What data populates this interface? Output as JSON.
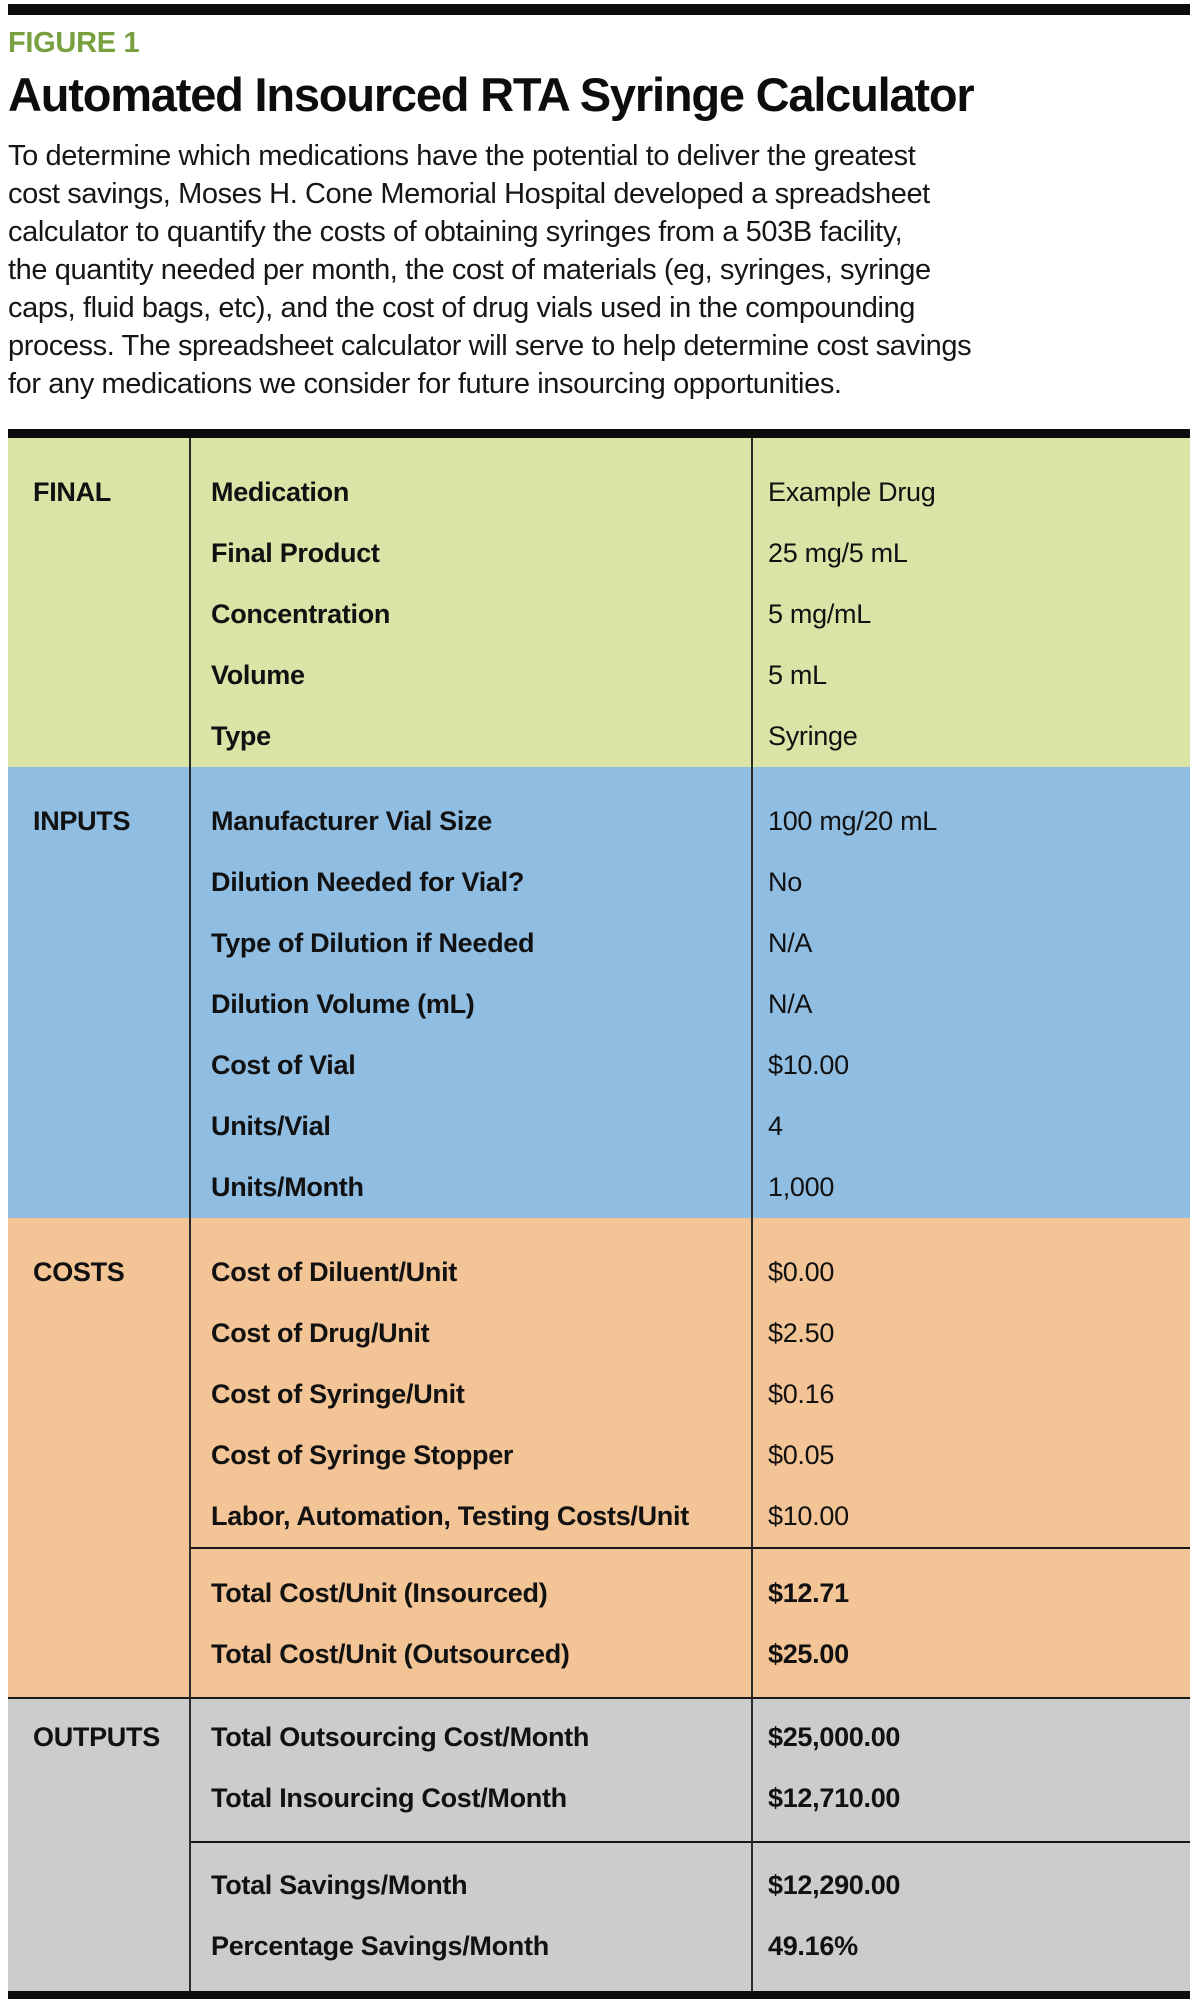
{
  "figure": {
    "kicker": "FIGURE 1",
    "title": "Automated Insourced RTA Syringe Calculator",
    "description": "To determine which medications have the potential to deliver the greatest\ncost savings, Moses H. Cone Memorial Hospital developed a spreadsheet\ncalculator to quantify the costs of obtaining syringes from a 503B facility,\nthe quantity needed per month, the cost of materials (eg, syringes, syringe\ncaps, fluid bags, etc), and the cost of drug vials used in the compounding\nprocess. The spreadsheet calculator will serve to help determine cost savings\nfor any medications we consider for future insourcing opportunities."
  },
  "colors": {
    "kicker_green": "#79a03f",
    "rule_black": "#0d0d0d",
    "final_bg": "#dbe3a7",
    "inputs_bg": "#90bde2",
    "costs_bg": "#f3c496",
    "outputs_bg": "#cccccd"
  },
  "table": {
    "sections": [
      {
        "id": "final",
        "label": "FINAL",
        "bg": "#dbe3a7",
        "top_line": false,
        "groups": [
          {
            "values_bold": false,
            "rows": [
              {
                "label": "Medication",
                "value": "Example Drug"
              },
              {
                "label": "Final Product",
                "value": "25 mg/5 mL"
              },
              {
                "label": "Concentration",
                "value": "5 mg/mL"
              },
              {
                "label": "Volume",
                "value": "5 mL"
              },
              {
                "label": "Type",
                "value": "Syringe"
              }
            ]
          }
        ]
      },
      {
        "id": "inputs",
        "label": "INPUTS",
        "bg": "#90bde2",
        "top_line": false,
        "groups": [
          {
            "values_bold": false,
            "rows": [
              {
                "label": "Manufacturer Vial Size",
                "value": "100 mg/20 mL"
              },
              {
                "label": "Dilution Needed for Vial?",
                "value": "No"
              },
              {
                "label": "Type of Dilution if Needed",
                "value": "N/A"
              },
              {
                "label": "Dilution Volume (mL)",
                "value": "N/A"
              },
              {
                "label": "Cost of Vial",
                "value": "$10.00"
              },
              {
                "label": "Units/Vial",
                "value": "4"
              },
              {
                "label": "Units/Month",
                "value": "1,000"
              }
            ]
          }
        ]
      },
      {
        "id": "costs",
        "label": "COSTS",
        "bg": "#f3c496",
        "top_line": false,
        "groups": [
          {
            "values_bold": false,
            "rows": [
              {
                "label": "Cost of Diluent/Unit",
                "value": "$0.00"
              },
              {
                "label": "Cost of Drug/Unit",
                "value": "$2.50"
              },
              {
                "label": "Cost of Syringe/Unit",
                "value": "$0.16"
              },
              {
                "label": "Cost of Syringe Stopper",
                "value": "$0.05"
              },
              {
                "label": "Labor, Automation, Testing Costs/Unit",
                "value": "$10.00"
              }
            ]
          },
          {
            "values_bold": true,
            "rows": [
              {
                "label": "Total Cost/Unit (Insourced)",
                "value": "$12.71"
              },
              {
                "label": "Total Cost/Unit (Outsourced)",
                "value": "$25.00"
              }
            ]
          }
        ]
      },
      {
        "id": "outputs",
        "label": "OUTPUTS",
        "bg": "#cccccd",
        "top_line": true,
        "groups": [
          {
            "values_bold": true,
            "rows": [
              {
                "label": "Total Outsourcing Cost/Month",
                "value": "$25,000.00"
              },
              {
                "label": "Total Insourcing Cost/Month",
                "value": "$12,710.00"
              }
            ]
          },
          {
            "values_bold": true,
            "rows": [
              {
                "label": "Total Savings/Month",
                "value": "$12,290.00"
              },
              {
                "label": "Percentage Savings/Month",
                "value": "49.16%"
              }
            ]
          }
        ]
      }
    ]
  }
}
